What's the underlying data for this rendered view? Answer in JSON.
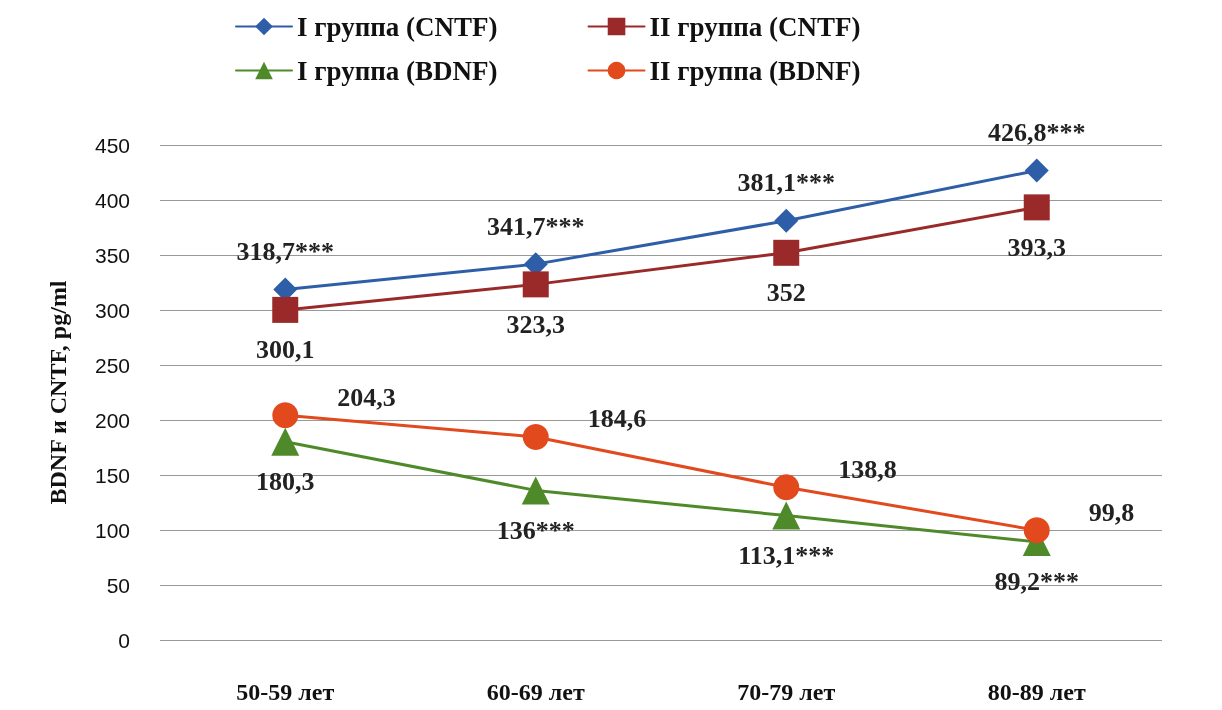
{
  "chart_data": {
    "type": "line",
    "ylabel": "BDNF и CNTF, pg/ml",
    "categories": [
      "50-59 лет",
      "60-69 лет",
      "70-79 лет",
      "80-89 лет"
    ],
    "series": [
      {
        "name": "I группа (CNTF)",
        "color": "#2f5ea8",
        "marker": "diamond",
        "values": [
          318.7,
          341.7,
          381.1,
          426.8
        ],
        "value_labels": [
          "318,7***",
          "341,7***",
          "381,1***",
          "426,8***"
        ]
      },
      {
        "name": "II группа (CNTF)",
        "color": "#9a2a2a",
        "marker": "square",
        "values": [
          300.1,
          323.3,
          352,
          393.3
        ],
        "value_labels": [
          "300,1",
          "323,3",
          "352",
          "393,3"
        ]
      },
      {
        "name": "I группа (BDNF)",
        "color": "#4f8a2a",
        "marker": "triangle",
        "values": [
          180.3,
          136,
          113.1,
          89.2
        ],
        "value_labels": [
          "180,3",
          "136***",
          "113,1***",
          "89,2***"
        ]
      },
      {
        "name": "II группа (BDNF)",
        "color": "#e2491c",
        "marker": "circle",
        "values": [
          204.3,
          184.6,
          138.8,
          99.8
        ],
        "value_labels": [
          "204,3",
          "184,6",
          "138,8",
          "99,8"
        ]
      }
    ],
    "ylim": [
      0,
      450
    ],
    "yticks": [
      0,
      50,
      100,
      150,
      200,
      250,
      300,
      350,
      400,
      450
    ],
    "grid": "y",
    "legend": "top",
    "line_style": "solid"
  }
}
